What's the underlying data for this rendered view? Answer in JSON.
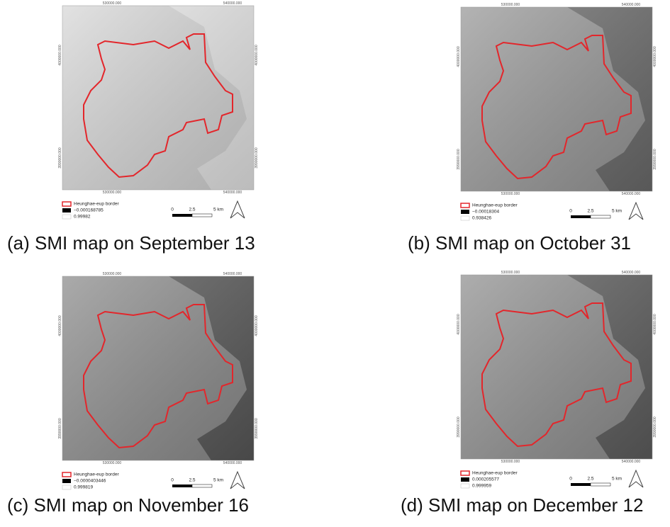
{
  "panels": [
    {
      "caption": "(a) SMI map on September 13",
      "border_label": "Heunghae-eup border",
      "legend_min": "−0.000168785",
      "legend_max": "0.99982",
      "scale": [
        "0",
        "2.5",
        "5 km"
      ],
      "x_coords": [
        "530000.000",
        "540000.000"
      ],
      "y_coords": [
        "4000000.000",
        "3990000.000"
      ]
    },
    {
      "caption": "(b) SMI map on October 31",
      "border_label": "Heunghae-eup border",
      "legend_min": "−0.00018304",
      "legend_max": "0.938426",
      "scale": [
        "0",
        "2.5",
        "5 km"
      ],
      "x_coords": [
        "530000.000",
        "540000.000"
      ],
      "y_coords": [
        "4000000.000",
        "3990000.000"
      ]
    },
    {
      "caption": "(c) SMI map on November 16",
      "border_label": "Heunghae-eup border",
      "legend_min": "−0.0000403446",
      "legend_max": "0.999819",
      "scale": [
        "0",
        "2.5",
        "5 km"
      ],
      "x_coords": [
        "530000.000",
        "540000.000"
      ],
      "y_coords": [
        "4000000.000",
        "3990000.000"
      ]
    },
    {
      "caption": "(d) SMI map on December 12",
      "border_label": "Heunghae-eup border",
      "legend_min": "0.000205577",
      "legend_max": "0.999959",
      "scale": [
        "0",
        "2.5",
        "5 km"
      ],
      "x_coords": [
        "530000.000",
        "540000.000"
      ],
      "y_coords": [
        "4000000.000",
        "3990000.000"
      ]
    }
  ]
}
